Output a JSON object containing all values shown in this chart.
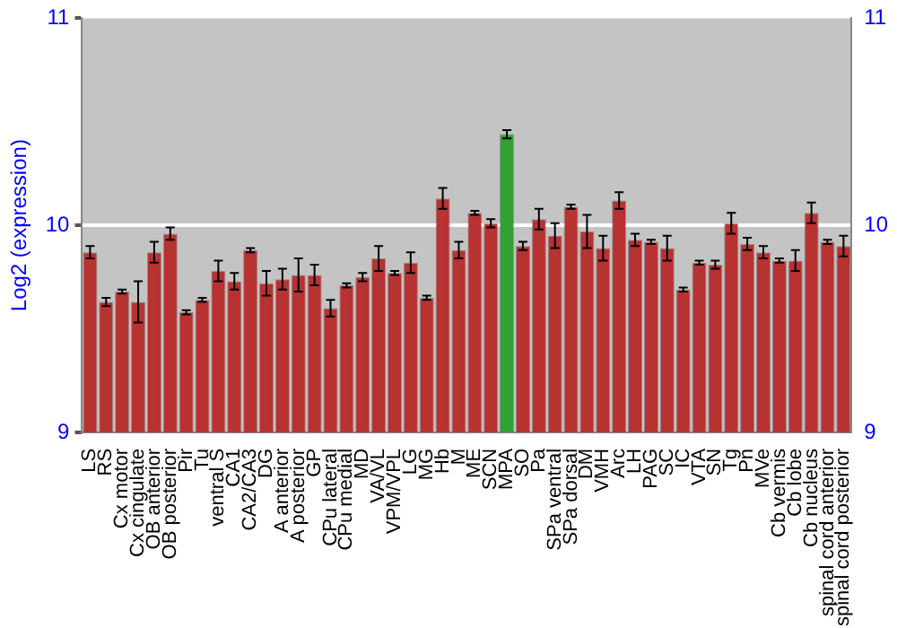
{
  "chart_data": {
    "type": "bar",
    "ylabel": "Log2 (expression)",
    "categories": [
      "LS",
      "RS",
      "Cx motor",
      "Cx cingulate",
      "OB anterior",
      "OB posterior",
      "Pir",
      "Tu",
      "ventral S",
      "CA1",
      "CA2/CA3",
      "DG",
      "A anterior",
      "A posterior",
      "GP",
      "CPu lateral",
      "CPu medial",
      "MD",
      "VA/VL",
      "VPM/VPL",
      "LG",
      "MG",
      "Hb",
      "M",
      "ME",
      "SCN",
      "MPA",
      "SO",
      "Pa",
      "SPa ventral",
      "SPa dorsal",
      "DM",
      "VMH",
      "Arc",
      "LH",
      "PAG",
      "SC",
      "IC",
      "VTA",
      "SN",
      "Tg",
      "Pn",
      "MVe",
      "Cb vermis",
      "Cb lobe",
      "Cb nucleus",
      "spinal cord anterior",
      "spinal cord posterior"
    ],
    "values": [
      9.87,
      9.63,
      9.68,
      9.63,
      9.87,
      9.96,
      9.58,
      9.64,
      9.78,
      9.73,
      9.88,
      9.72,
      9.74,
      9.76,
      9.76,
      9.6,
      9.71,
      9.75,
      9.84,
      9.77,
      9.82,
      9.65,
      10.13,
      9.88,
      10.06,
      10.01,
      10.44,
      9.9,
      10.03,
      9.95,
      10.09,
      9.97,
      9.89,
      10.12,
      9.93,
      9.92,
      9.89,
      9.69,
      9.82,
      9.81,
      10.01,
      9.91,
      9.87,
      9.83,
      9.83,
      10.06,
      9.92,
      9.9
    ],
    "errors": [
      0.03,
      0.02,
      0.01,
      0.1,
      0.05,
      0.03,
      0.01,
      0.01,
      0.05,
      0.04,
      0.01,
      0.06,
      0.05,
      0.08,
      0.05,
      0.04,
      0.01,
      0.02,
      0.06,
      0.01,
      0.05,
      0.01,
      0.05,
      0.04,
      0.01,
      0.02,
      0.02,
      0.02,
      0.05,
      0.06,
      0.01,
      0.08,
      0.06,
      0.04,
      0.03,
      0.01,
      0.06,
      0.01,
      0.01,
      0.02,
      0.05,
      0.03,
      0.03,
      0.01,
      0.05,
      0.05,
      0.01,
      0.05
    ],
    "colors": [
      "#b83232",
      "#b83232",
      "#b83232",
      "#b83232",
      "#b83232",
      "#b83232",
      "#b83232",
      "#b83232",
      "#b83232",
      "#b83232",
      "#b83232",
      "#b83232",
      "#b83232",
      "#b83232",
      "#b83232",
      "#b83232",
      "#b83232",
      "#b83232",
      "#b83232",
      "#b83232",
      "#b83232",
      "#b83232",
      "#b83232",
      "#b83232",
      "#b83232",
      "#b83232",
      "#33a033",
      "#b83232",
      "#b83232",
      "#b83232",
      "#b83232",
      "#b83232",
      "#b83232",
      "#b83232",
      "#b83232",
      "#b83232",
      "#b83232",
      "#b83232",
      "#b83232",
      "#b83232",
      "#b83232",
      "#b83232",
      "#b83232",
      "#b83232",
      "#b83232",
      "#b83232",
      "#b83232",
      "#b83232"
    ],
    "ylim": [
      9,
      11
    ],
    "yticks": [
      9,
      10,
      11
    ],
    "y2lim": [
      9,
      11
    ],
    "y2ticks": [
      9,
      10,
      11
    ],
    "grid": "y",
    "legend": false
  }
}
